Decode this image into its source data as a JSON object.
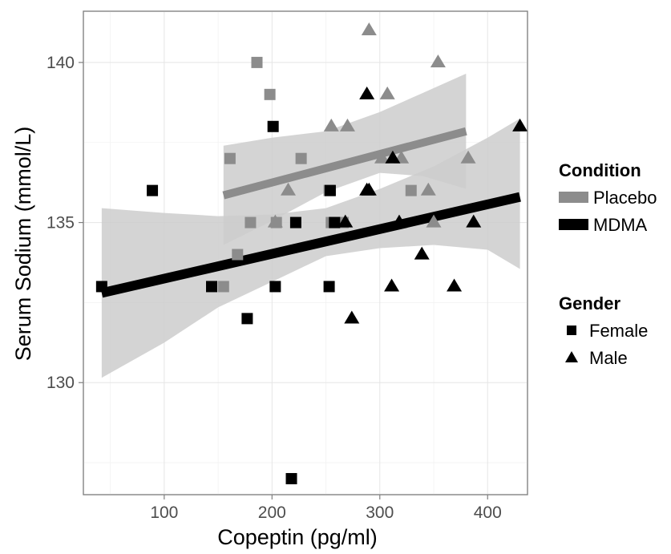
{
  "chart_data": {
    "type": "scatter",
    "xlabel": "Copeptin (pg/ml)",
    "ylabel": "Serum Sodium (mmol/L)",
    "xlim": [
      25,
      437
    ],
    "ylim": [
      126.5,
      141.6
    ],
    "x_ticks": [
      100,
      200,
      300,
      400
    ],
    "y_ticks": [
      130,
      135,
      140
    ],
    "x_tick_labels": [
      "100",
      "200",
      "300",
      "400"
    ],
    "y_tick_labels": [
      "130",
      "135",
      "140"
    ],
    "grid": true,
    "legend_position": "right",
    "colors": {
      "Placebo": "#8c8c8c",
      "MDMA": "#000000",
      "band": "#cccccc"
    },
    "legends": [
      {
        "title": "Condition",
        "items": [
          {
            "label": "Placebo",
            "symbol": "line-grey"
          },
          {
            "label": "MDMA",
            "symbol": "line-black"
          }
        ]
      },
      {
        "title": "Gender",
        "items": [
          {
            "label": "Female",
            "symbol": "square"
          },
          {
            "label": "Male",
            "symbol": "triangle"
          }
        ]
      }
    ],
    "series": [
      {
        "condition": "Placebo",
        "gender": "Female",
        "points": [
          [
            186,
            140
          ],
          [
            198,
            139
          ],
          [
            161,
            137
          ],
          [
            227,
            137
          ],
          [
            253,
            136
          ],
          [
            329,
            136
          ],
          [
            180,
            135
          ],
          [
            204,
            135
          ],
          [
            255,
            135
          ],
          [
            266,
            135
          ],
          [
            168,
            134
          ],
          [
            155,
            133
          ]
        ]
      },
      {
        "condition": "Placebo",
        "gender": "Male",
        "points": [
          [
            290,
            141
          ],
          [
            307,
            139
          ],
          [
            354,
            140
          ],
          [
            255,
            138
          ],
          [
            270,
            138
          ],
          [
            302,
            137
          ],
          [
            320,
            137
          ],
          [
            382,
            137
          ],
          [
            215,
            136
          ],
          [
            345,
            136
          ],
          [
            203,
            135
          ],
          [
            350,
            135
          ]
        ]
      },
      {
        "condition": "MDMA",
        "gender": "Female",
        "points": [
          [
            42,
            133
          ],
          [
            89,
            136
          ],
          [
            201,
            138
          ],
          [
            254,
            136
          ],
          [
            222,
            135
          ],
          [
            258,
            135
          ],
          [
            144,
            133
          ],
          [
            203,
            133
          ],
          [
            253,
            133
          ],
          [
            177,
            132
          ],
          [
            218,
            127
          ]
        ]
      },
      {
        "condition": "MDMA",
        "gender": "Male",
        "points": [
          [
            288,
            139
          ],
          [
            430,
            138
          ],
          [
            312,
            137
          ],
          [
            288,
            136
          ],
          [
            290,
            136
          ],
          [
            268,
            135
          ],
          [
            318,
            135
          ],
          [
            387,
            135
          ],
          [
            339,
            134
          ],
          [
            311,
            133
          ],
          [
            369,
            133
          ],
          [
            274,
            132
          ]
        ]
      }
    ],
    "fits": [
      {
        "condition": "Placebo",
        "x": [
          155,
          380
        ],
        "y": [
          135.85,
          137.85
        ],
        "band": [
          [
            155,
            134.3,
            137.4
          ],
          [
            200,
            135.05,
            137.65
          ],
          [
            250,
            135.95,
            137.85
          ],
          [
            300,
            136.55,
            138.45
          ],
          [
            340,
            136.45,
            139.05
          ],
          [
            380,
            136.05,
            139.65
          ]
        ]
      },
      {
        "condition": "MDMA",
        "x": [
          42,
          430
        ],
        "y": [
          132.8,
          135.8
        ],
        "band": [
          [
            42,
            130.15,
            135.45
          ],
          [
            100,
            131.25,
            135.3
          ],
          [
            150,
            132.35,
            135.2
          ],
          [
            200,
            133.15,
            135.25
          ],
          [
            250,
            133.95,
            135.45
          ],
          [
            300,
            134.2,
            136.05
          ],
          [
            350,
            134.3,
            136.75
          ],
          [
            400,
            134.15,
            137.65
          ],
          [
            430,
            133.55,
            138.25
          ]
        ]
      }
    ]
  }
}
